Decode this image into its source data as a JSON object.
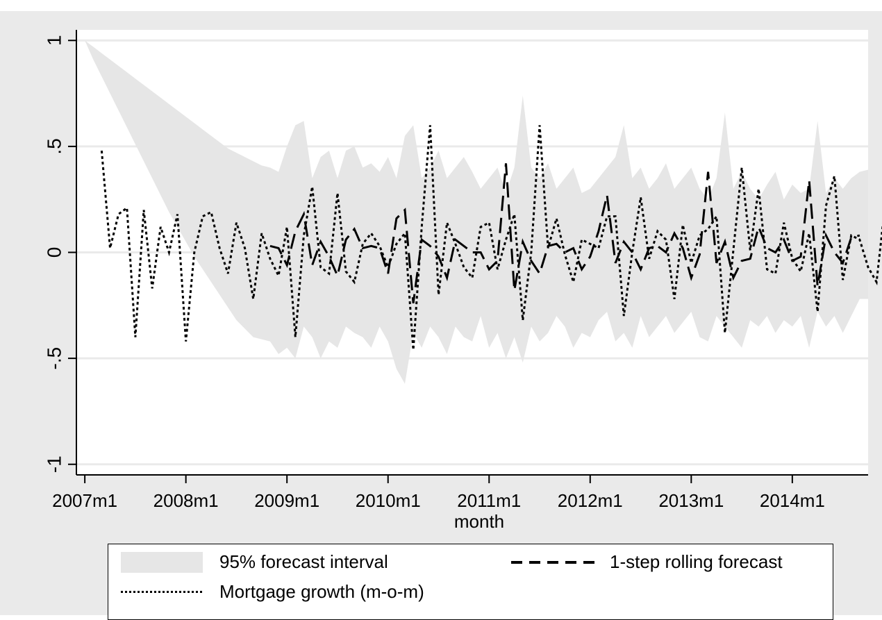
{
  "page": {
    "banner_text_left": "",
    "banner_text_right": ""
  },
  "chart_data": {
    "type": "line",
    "xlabel": "month",
    "ylabel": "",
    "xlim": [
      "2006m12",
      "2014m10"
    ],
    "ylim": [
      -1.05,
      1.05
    ],
    "grid": true,
    "x_ticks": [
      "2007m1",
      "2008m1",
      "2009m1",
      "2010m1",
      "2011m1",
      "2012m1",
      "2013m1",
      "2014m1"
    ],
    "y_ticks": [
      "-1",
      "-.5",
      "0",
      ".5",
      "1"
    ],
    "y_tick_values": [
      -1,
      -0.5,
      0,
      0.5,
      1
    ],
    "legend_position": "bottom",
    "colors": {
      "band": "#e6e6e6",
      "line": "#000000",
      "grid": "#eaeaea",
      "plot_bg": "#ffffff",
      "outer_bg": "#eaeaea"
    },
    "legend": [
      "95% forecast interval",
      "1-step rolling forecast",
      "Mortgage growth (m-o-m)"
    ],
    "series": [
      {
        "name": "Mortgage growth (m-o-m)",
        "style": "dotted",
        "start": "2007m3",
        "values": [
          0.48,
          0.02,
          0.18,
          0.21,
          -0.4,
          0.2,
          -0.17,
          0.12,
          0.0,
          0.18,
          -0.42,
          0.0,
          0.17,
          0.19,
          0.02,
          -0.1,
          0.14,
          0.02,
          -0.22,
          0.09,
          -0.03,
          -0.11,
          0.12,
          -0.4,
          0.08,
          0.31,
          -0.07,
          -0.1,
          0.28,
          -0.09,
          -0.14,
          0.04,
          0.09,
          0.03,
          -0.07,
          0.04,
          0.09,
          -0.46,
          0.12,
          0.6,
          -0.2,
          0.14,
          0.04,
          -0.07,
          -0.12,
          0.12,
          0.14,
          -0.08,
          0.06,
          0.18,
          -0.32,
          0.0,
          0.6,
          0.02,
          0.16,
          -0.01,
          -0.14,
          0.06,
          0.04,
          0.02,
          0.17,
          0.17,
          -0.3,
          0.0,
          0.26,
          -0.03,
          0.1,
          0.06,
          -0.22,
          0.13,
          -0.05,
          0.08,
          0.11,
          0.17,
          -0.38,
          0.01,
          0.4,
          0.01,
          0.3,
          -0.08,
          -0.1,
          0.14,
          -0.03,
          -0.09,
          0.09,
          -0.28,
          0.22,
          0.36,
          -0.13,
          0.08,
          0.06,
          -0.07,
          -0.14,
          0.22
        ]
      },
      {
        "name": "1-step rolling forecast",
        "style": "dashed",
        "start": "2008m11",
        "values": [
          0.03,
          0.02,
          -0.06,
          0.1,
          0.18,
          -0.06,
          0.05,
          -0.02,
          -0.11,
          0.06,
          0.11,
          0.02,
          0.03,
          0.02,
          -0.1,
          0.16,
          0.2,
          -0.24,
          0.06,
          0.03,
          -0.02,
          -0.12,
          0.06,
          0.03,
          0.0,
          0.0,
          -0.08,
          -0.04,
          0.42,
          -0.18,
          0.05,
          -0.04,
          -0.1,
          0.03,
          0.04,
          0.0,
          0.02,
          -0.08,
          -0.02,
          0.1,
          0.27,
          -0.05,
          0.05,
          0.0,
          -0.08,
          0.02,
          0.03,
          0.0,
          0.09,
          0.02,
          -0.12,
          -0.01,
          0.38,
          -0.05,
          0.05,
          -0.12,
          -0.04,
          -0.03,
          0.12,
          0.02,
          0.0,
          0.06,
          -0.04,
          -0.02,
          0.34,
          -0.16,
          0.08,
          0.0,
          -0.05,
          0.07,
          0.08
        ]
      }
    ],
    "band": {
      "name": "95% forecast interval",
      "start": "2007m1",
      "upper": [
        1.0,
        0.97,
        0.94,
        0.91,
        0.88,
        0.85,
        0.82,
        0.79,
        0.76,
        0.73,
        0.7,
        0.67,
        0.64,
        0.61,
        0.58,
        0.55,
        0.52,
        0.49,
        0.47,
        0.45,
        0.43,
        0.41,
        0.4,
        0.38,
        0.5,
        0.6,
        0.62,
        0.35,
        0.45,
        0.48,
        0.35,
        0.48,
        0.5,
        0.4,
        0.42,
        0.38,
        0.45,
        0.35,
        0.55,
        0.6,
        0.35,
        0.4,
        0.48,
        0.35,
        0.4,
        0.45,
        0.38,
        0.3,
        0.35,
        0.4,
        0.28,
        0.4,
        0.74,
        0.4,
        0.35,
        0.42,
        0.3,
        0.35,
        0.4,
        0.28,
        0.3,
        0.35,
        0.4,
        0.45,
        0.6,
        0.35,
        0.4,
        0.3,
        0.35,
        0.42,
        0.3,
        0.35,
        0.4,
        0.3,
        0.25,
        0.35,
        0.66,
        0.3,
        0.38,
        0.3,
        0.25,
        0.32,
        0.38,
        0.25,
        0.32,
        0.28,
        0.3,
        0.62,
        0.28,
        0.35,
        0.3,
        0.35,
        0.38,
        0.39
      ],
      "lower": [
        1.0,
        0.91,
        0.83,
        0.75,
        0.67,
        0.59,
        0.51,
        0.43,
        0.35,
        0.27,
        0.19,
        0.12,
        0.05,
        -0.02,
        -0.08,
        -0.14,
        -0.2,
        -0.26,
        -0.32,
        -0.36,
        -0.4,
        -0.41,
        -0.42,
        -0.48,
        -0.45,
        -0.5,
        -0.35,
        -0.4,
        -0.5,
        -0.42,
        -0.45,
        -0.35,
        -0.38,
        -0.4,
        -0.45,
        -0.35,
        -0.42,
        -0.55,
        -0.62,
        -0.38,
        -0.45,
        -0.35,
        -0.4,
        -0.48,
        -0.35,
        -0.4,
        -0.42,
        -0.3,
        -0.45,
        -0.38,
        -0.5,
        -0.4,
        -0.52,
        -0.35,
        -0.42,
        -0.38,
        -0.3,
        -0.35,
        -0.45,
        -0.38,
        -0.4,
        -0.32,
        -0.28,
        -0.42,
        -0.38,
        -0.45,
        -0.3,
        -0.4,
        -0.35,
        -0.3,
        -0.38,
        -0.33,
        -0.28,
        -0.4,
        -0.42,
        -0.3,
        -0.35,
        -0.4,
        -0.45,
        -0.32,
        -0.35,
        -0.3,
        -0.38,
        -0.32,
        -0.35,
        -0.3,
        -0.45,
        -0.28,
        -0.35,
        -0.3,
        -0.38,
        -0.3,
        -0.22,
        -0.22
      ]
    }
  }
}
